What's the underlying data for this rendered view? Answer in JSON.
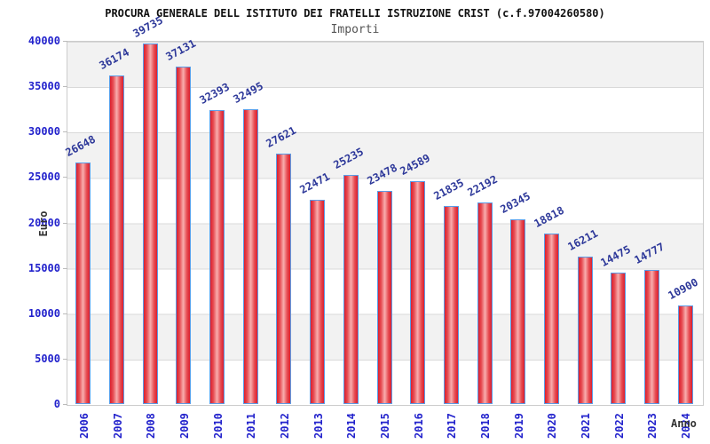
{
  "chart_data": {
    "type": "bar",
    "title": "PROCURA GENERALE DELL ISTITUTO DEI FRATELLI ISTRUZIONE CRIST (c.f.97004260580)",
    "subtitle": "Importi",
    "xlabel": "Anno",
    "ylabel": "Euro",
    "categories": [
      "2006",
      "2007",
      "2008",
      "2009",
      "2010",
      "2011",
      "2012",
      "2013",
      "2014",
      "2015",
      "2016",
      "2017",
      "2018",
      "2019",
      "2020",
      "2021",
      "2022",
      "2023",
      "2024"
    ],
    "values": [
      26648,
      36174,
      39735,
      37131,
      32393,
      32495,
      27621,
      22471,
      25235,
      23478,
      24589,
      21835,
      22192,
      20345,
      18818,
      16211,
      14475,
      14777,
      10900
    ],
    "ylim": [
      0,
      40000
    ],
    "yticks": [
      0,
      5000,
      10000,
      15000,
      20000,
      25000,
      30000,
      35000,
      40000
    ],
    "grid": "horizontal-bands-alternating",
    "legend_position": "none",
    "bar_value_labels_rotated": true,
    "colors": {
      "bar_fill_edge": "#dc1f2e",
      "bar_fill_center": "#f8aeae",
      "bar_border": "#5b9ce6",
      "tick_label": "#2222cc",
      "value_label": "#2c3799",
      "axis_title": "#333333",
      "band_gray": "#f2f2f2",
      "gridline": "#d9d9d9",
      "plot_border": "#cccccc",
      "title": "#111111",
      "subtitle": "#555555"
    }
  }
}
